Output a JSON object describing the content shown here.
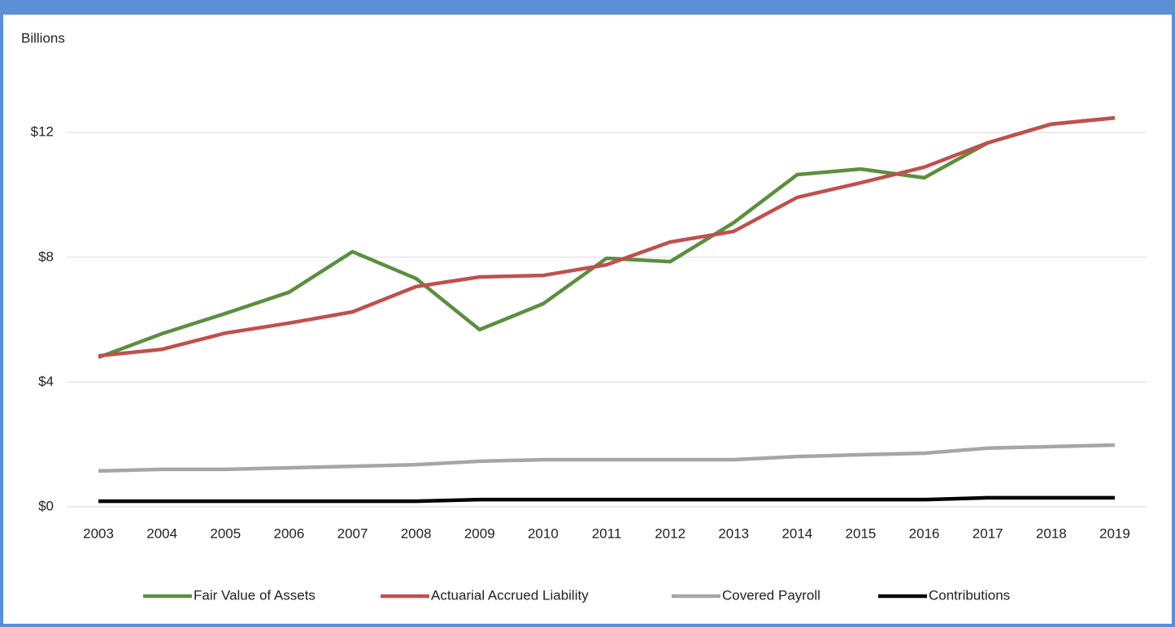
{
  "chart_data": {
    "type": "line",
    "y_label": "Billions",
    "categories": [
      "2003",
      "2004",
      "2005",
      "2006",
      "2007",
      "2008",
      "2009",
      "2010",
      "2011",
      "2012",
      "2013",
      "2014",
      "2015",
      "2016",
      "2017",
      "2018",
      "2019"
    ],
    "series": [
      {
        "name": "Fair Value of Assets",
        "color": "#5b8f3f",
        "values": [
          4.79,
          5.55,
          6.2,
          6.88,
          8.18,
          7.32,
          5.68,
          6.51,
          7.97,
          7.86,
          9.11,
          10.65,
          10.83,
          10.55,
          11.67,
          12.27,
          12.47
        ]
      },
      {
        "name": "Actuarial Accrued Liability",
        "color": "#c0504d",
        "values": [
          4.84,
          5.05,
          5.57,
          5.89,
          6.25,
          7.06,
          7.37,
          7.42,
          7.76,
          8.49,
          8.83,
          9.92,
          10.39,
          10.89,
          11.67,
          12.27,
          12.47
        ]
      },
      {
        "name": "Covered Payroll",
        "color": "#a6a6a6",
        "values": [
          1.15,
          1.2,
          1.2,
          1.25,
          1.3,
          1.35,
          1.46,
          1.51,
          1.51,
          1.51,
          1.51,
          1.61,
          1.67,
          1.72,
          1.88,
          1.93,
          1.98
        ]
      },
      {
        "name": "Contributions",
        "color": "#000000",
        "values": [
          0.18,
          0.18,
          0.18,
          0.18,
          0.18,
          0.18,
          0.23,
          0.23,
          0.23,
          0.23,
          0.23,
          0.23,
          0.23,
          0.23,
          0.29,
          0.29,
          0.29
        ]
      }
    ],
    "ylim": [
      0,
      14
    ],
    "yticks": [
      {
        "value": 0,
        "label": "$0"
      },
      {
        "value": 4,
        "label": "$4"
      },
      {
        "value": 8,
        "label": "$8"
      },
      {
        "value": 12,
        "label": "$12"
      }
    ],
    "grid": true,
    "legend": "bottom"
  }
}
